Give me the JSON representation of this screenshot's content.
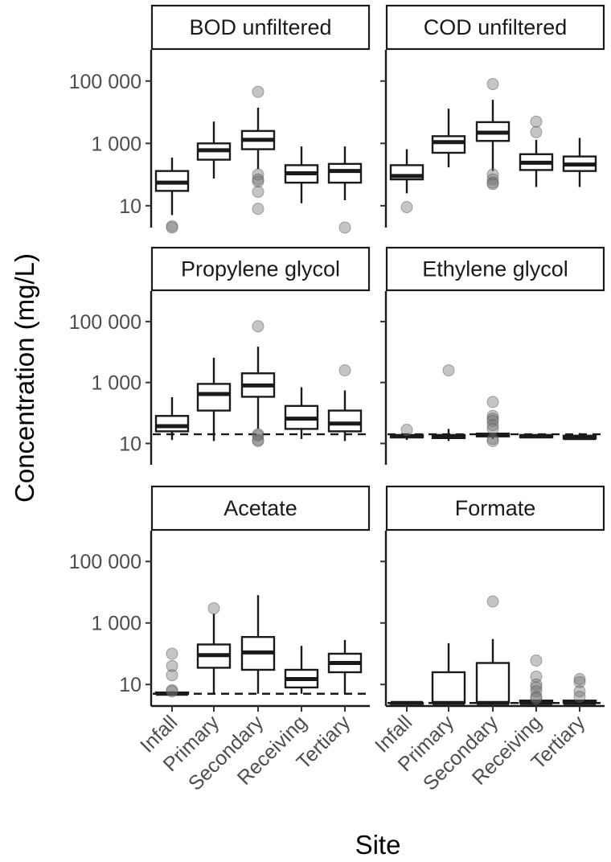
{
  "chart_data": {
    "type": "boxplot",
    "facet_layout": "3 rows x 2 columns",
    "xlabel": "Site",
    "ylabel": "Concentration (mg/L)",
    "y_scale": "log10",
    "y_ticks": [
      {
        "value": 10,
        "label": "10"
      },
      {
        "value": 1000,
        "label": "1 000"
      },
      {
        "value": 100000,
        "label": "100 000"
      }
    ],
    "ylim_log10": [
      0.3,
      6.0
    ],
    "categories": [
      "Infall",
      "Primary",
      "Secondary",
      "Receiving",
      "Tertiary"
    ],
    "panels": [
      {
        "title": "BOD unfiltered",
        "row": 0,
        "col": 0,
        "detection_limit": null,
        "boxes": [
          {
            "site": "Infall",
            "min": 5,
            "q1": 30,
            "median": 55,
            "q3": 130,
            "max": 350,
            "outliers": [
              2.2,
              2.0
            ]
          },
          {
            "site": "Primary",
            "min": 75,
            "q1": 300,
            "median": 600,
            "q3": 1000,
            "max": 5000,
            "outliers": []
          },
          {
            "site": "Secondary",
            "min": 150,
            "q1": 650,
            "median": 1300,
            "q3": 2500,
            "max": 14000,
            "outliers": [
              45000,
              100,
              70,
              60,
              28,
              8
            ]
          },
          {
            "site": "Receiving",
            "min": 12,
            "q1": 55,
            "median": 110,
            "q3": 200,
            "max": 800,
            "outliers": []
          },
          {
            "site": "Tertiary",
            "min": 15,
            "q1": 55,
            "median": 130,
            "q3": 220,
            "max": 800,
            "outliers": [
              2
            ]
          }
        ]
      },
      {
        "title": "COD unfiltered",
        "row": 0,
        "col": 1,
        "detection_limit": null,
        "boxes": [
          {
            "site": "Infall",
            "min": 25,
            "q1": 70,
            "median": 90,
            "q3": 200,
            "max": 650,
            "outliers": [
              9
            ]
          },
          {
            "site": "Primary",
            "min": 170,
            "q1": 500,
            "median": 1100,
            "q3": 1700,
            "max": 13000,
            "outliers": []
          },
          {
            "site": "Secondary",
            "min": 130,
            "q1": 1200,
            "median": 2200,
            "q3": 4800,
            "max": 25000,
            "outliers": [
              80000,
              100,
              70,
              55,
              50
            ]
          },
          {
            "site": "Receiving",
            "min": 40,
            "q1": 140,
            "median": 240,
            "q3": 450,
            "max": 1300,
            "outliers": [
              5000,
              2300
            ]
          },
          {
            "site": "Tertiary",
            "min": 40,
            "q1": 130,
            "median": 210,
            "q3": 380,
            "max": 1500,
            "outliers": []
          }
        ]
      },
      {
        "title": "Propylene glycol",
        "row": 1,
        "col": 0,
        "detection_limit": 20,
        "boxes": [
          {
            "site": "Infall",
            "min": 13,
            "q1": 25,
            "median": 37,
            "q3": 80,
            "max": 330,
            "outliers": []
          },
          {
            "site": "Primary",
            "min": 12,
            "q1": 120,
            "median": 420,
            "q3": 900,
            "max": 6500,
            "outliers": []
          },
          {
            "site": "Secondary",
            "min": 30,
            "q1": 340,
            "median": 800,
            "q3": 2000,
            "max": 15000,
            "outliers": [
              70000,
              20,
              18,
              13,
              12
            ]
          },
          {
            "site": "Receiving",
            "min": 14,
            "q1": 30,
            "median": 65,
            "q3": 170,
            "max": 700,
            "outliers": []
          },
          {
            "site": "Tertiary",
            "min": 12,
            "q1": 25,
            "median": 45,
            "q3": 120,
            "max": 550,
            "outliers": [
              2500
            ]
          }
        ]
      },
      {
        "title": "Ethylene glycol",
        "row": 1,
        "col": 1,
        "detection_limit": 20,
        "boxes": [
          {
            "site": "Infall",
            "min": 13,
            "q1": 16,
            "median": 17,
            "q3": 19,
            "max": 20,
            "outliers": [
              28
            ]
          },
          {
            "site": "Primary",
            "min": 12,
            "q1": 15,
            "median": 17,
            "q3": 19,
            "max": 30,
            "outliers": [
              2500
            ]
          },
          {
            "site": "Secondary",
            "min": 14,
            "q1": 17,
            "median": 19,
            "q3": 21,
            "max": 22,
            "outliers": [
              230,
              80,
              65,
              55,
              40,
              30,
              14,
              12
            ]
          },
          {
            "site": "Receiving",
            "min": 15,
            "q1": 16,
            "median": 17,
            "q3": 19,
            "max": 20,
            "outliers": []
          },
          {
            "site": "Tertiary",
            "min": 14,
            "q1": 14.5,
            "median": 15,
            "q3": 18,
            "max": 22,
            "outliers": []
          }
        ]
      },
      {
        "title": "Acetate",
        "row": 2,
        "col": 0,
        "detection_limit": 5,
        "boxes": [
          {
            "site": "Infall",
            "min": 5,
            "q1": 5,
            "median": 5,
            "q3": 5.5,
            "max": 6,
            "outliers": [
              100,
              40,
              20,
              6.5,
              6
            ]
          },
          {
            "site": "Primary",
            "min": 5,
            "q1": 35,
            "median": 90,
            "q3": 200,
            "max": 2000,
            "outliers": [
              3000
            ]
          },
          {
            "site": "Secondary",
            "min": 5,
            "q1": 30,
            "median": 110,
            "q3": 350,
            "max": 8000,
            "outliers": []
          },
          {
            "site": "Receiving",
            "min": 5,
            "q1": 8,
            "median": 15,
            "q3": 30,
            "max": 180,
            "outliers": []
          },
          {
            "site": "Tertiary",
            "min": 5,
            "q1": 25,
            "median": 50,
            "q3": 100,
            "max": 280,
            "outliers": []
          }
        ]
      },
      {
        "title": "Formate",
        "row": 2,
        "col": 1,
        "detection_limit": 2.5,
        "boxes": [
          {
            "site": "Infall",
            "min": 2.5,
            "q1": 2.5,
            "median": 2.5,
            "q3": 2.5,
            "max": 2.5,
            "outliers": []
          },
          {
            "site": "Primary",
            "min": 2.5,
            "q1": 2.5,
            "median": 2.5,
            "q3": 25,
            "max": 220,
            "outliers": []
          },
          {
            "site": "Secondary",
            "min": 2.5,
            "q1": 2.5,
            "median": 2.5,
            "q3": 50,
            "max": 300,
            "outliers": [
              5000
            ]
          },
          {
            "site": "Receiving",
            "min": 2.5,
            "q1": 2.5,
            "median": 2.5,
            "q3": 3,
            "max": 3,
            "outliers": [
              60,
              18,
              10,
              8,
              6,
              4,
              3.5
            ]
          },
          {
            "site": "Tertiary",
            "min": 2.5,
            "q1": 2.5,
            "median": 2.5,
            "q3": 3,
            "max": 3,
            "outliers": [
              15,
              12,
              6,
              4
            ]
          }
        ]
      }
    ]
  }
}
